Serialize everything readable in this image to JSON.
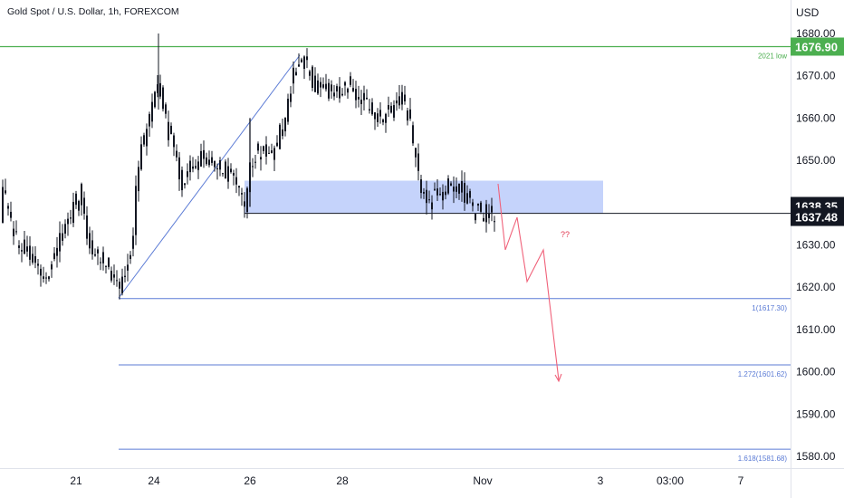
{
  "chart_data": {
    "type": "candlestick",
    "title": "Gold Spot / U.S. Dollar, 1h, FOREXCOM",
    "currency": "USD",
    "y_ticks": [
      "1680.00",
      "1670.00",
      "1660.00",
      "1650.00",
      "1640.00",
      "1630.00",
      "1620.00",
      "1610.00",
      "1600.00",
      "1590.00",
      "1580.00"
    ],
    "y_tick_values": [
      1680,
      1670,
      1660,
      1650,
      1640,
      1630,
      1620,
      1610,
      1600,
      1590,
      1580
    ],
    "ylim": [
      1577.3,
      1687.6
    ],
    "x_ticks": [
      "21",
      "24",
      "26",
      "28",
      "Nov",
      "3",
      "03:00",
      "7"
    ],
    "price_labels": [
      {
        "text": "1676.90",
        "value": 1676.9,
        "color": "#4caf50"
      },
      {
        "text": "1638.35",
        "value": 1638.35,
        "color": "#131722"
      },
      {
        "text": "1637.48",
        "value": 1637.48,
        "color": "#131722"
      }
    ],
    "levels": [
      {
        "label": "2021 low",
        "value": 1676.9,
        "color": "#4caf50"
      },
      {
        "label": "1(1617.30)",
        "value": 1617.3,
        "color": "#5b7bd5"
      },
      {
        "label": "1.272(1601.62)",
        "value": 1601.62,
        "color": "#5b7bd5"
      },
      {
        "label": "1.618(1581.68)",
        "value": 1581.68,
        "color": "#5b7bd5"
      }
    ],
    "zone": {
      "top": 1645.2,
      "bottom": 1637.5
    },
    "close_line": 1637.48,
    "annotation": "??",
    "colors": {
      "candle": "#131722",
      "fib": "#5b7bd5",
      "zone": "#c5d3fb",
      "projection": "#f0627a",
      "green": "#4caf50"
    }
  }
}
